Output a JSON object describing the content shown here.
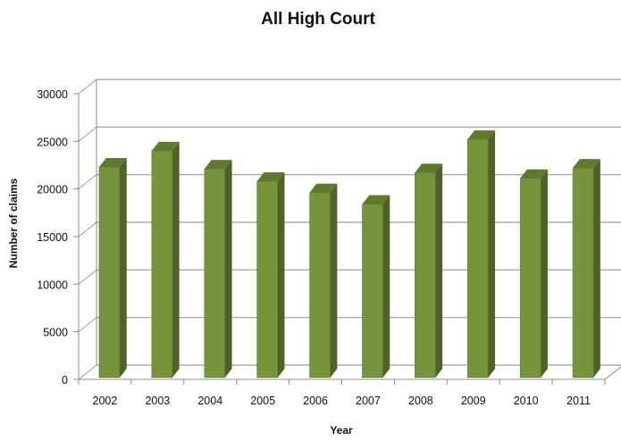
{
  "chart_data": {
    "type": "bar",
    "title": "All High Court",
    "xlabel": "Year",
    "ylabel": "Number of claims",
    "categories": [
      "2002",
      "2003",
      "2004",
      "2005",
      "2006",
      "2007",
      "2008",
      "2009",
      "2010",
      "2011"
    ],
    "series": [
      {
        "values": [
          22500,
          24200,
          22300,
          21000,
          19800,
          18600,
          21900,
          25400,
          21300,
          22400
        ]
      }
    ],
    "ylim": [
      0,
      30000
    ],
    "yticks": [
      0,
      5000,
      10000,
      15000,
      20000,
      25000,
      30000
    ],
    "grid": true,
    "style": "3d-column",
    "colors": {
      "bar_front": "#77933c",
      "bar_side": "#4f6228",
      "bar_top": "#5f7a2e",
      "gridline": "#9a9a9a",
      "axis": "#8c8c8c"
    }
  }
}
